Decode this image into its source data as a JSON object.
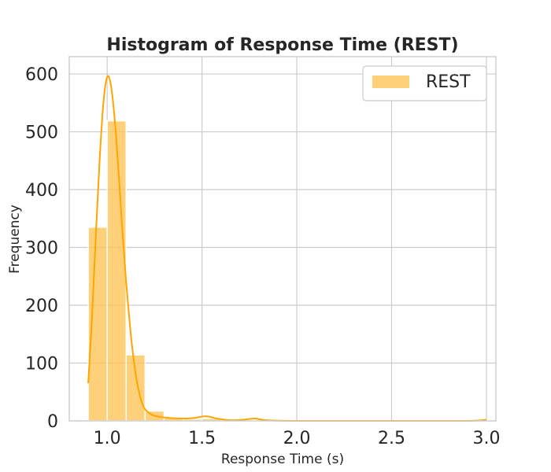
{
  "chart_data": {
    "type": "bar",
    "title": "Histogram of Response Time (REST)",
    "xlabel": "Response Time (s)",
    "ylabel": "Frequency",
    "xlim": [
      0.8,
      3.05
    ],
    "ylim": [
      0,
      630
    ],
    "xticks": [
      "1.0",
      "1.5",
      "2.0",
      "2.5",
      "3.0"
    ],
    "yticks": [
      "0",
      "100",
      "200",
      "300",
      "400",
      "500",
      "600"
    ],
    "grid": true,
    "legend_position": "top-right",
    "bar_color": "#ffc04d",
    "line_color": "#ffa500",
    "series": [
      {
        "name": "REST",
        "bins": [
          {
            "x0": 0.9,
            "x1": 1.0,
            "count": 335
          },
          {
            "x0": 1.0,
            "x1": 1.1,
            "count": 519
          },
          {
            "x0": 1.1,
            "x1": 1.2,
            "count": 114
          },
          {
            "x0": 1.2,
            "x1": 1.3,
            "count": 17
          },
          {
            "x0": 1.3,
            "x1": 1.4,
            "count": 5
          },
          {
            "x0": 1.4,
            "x1": 1.5,
            "count": 3
          },
          {
            "x0": 1.5,
            "x1": 1.6,
            "count": 4
          },
          {
            "x0": 1.6,
            "x1": 1.7,
            "count": 1
          },
          {
            "x0": 1.7,
            "x1": 1.8,
            "count": 2
          },
          {
            "x0": 1.8,
            "x1": 1.9,
            "count": 1
          },
          {
            "x0": 2.9,
            "x1": 3.0,
            "count": 1
          }
        ],
        "kde": [
          [
            0.9,
            65
          ],
          [
            0.92,
            180
          ],
          [
            0.94,
            320
          ],
          [
            0.96,
            450
          ],
          [
            0.98,
            550
          ],
          [
            1.0,
            595
          ],
          [
            1.02,
            580
          ],
          [
            1.04,
            520
          ],
          [
            1.06,
            430
          ],
          [
            1.08,
            330
          ],
          [
            1.1,
            240
          ],
          [
            1.12,
            165
          ],
          [
            1.14,
            105
          ],
          [
            1.16,
            62
          ],
          [
            1.18,
            35
          ],
          [
            1.2,
            20
          ],
          [
            1.24,
            10
          ],
          [
            1.3,
            6
          ],
          [
            1.4,
            4
          ],
          [
            1.46,
            5
          ],
          [
            1.52,
            8
          ],
          [
            1.58,
            4
          ],
          [
            1.65,
            1
          ],
          [
            1.72,
            2
          ],
          [
            1.78,
            4
          ],
          [
            1.84,
            1
          ],
          [
            2.0,
            0
          ],
          [
            2.5,
            0
          ],
          [
            2.9,
            0
          ],
          [
            3.0,
            2
          ]
        ]
      }
    ]
  }
}
